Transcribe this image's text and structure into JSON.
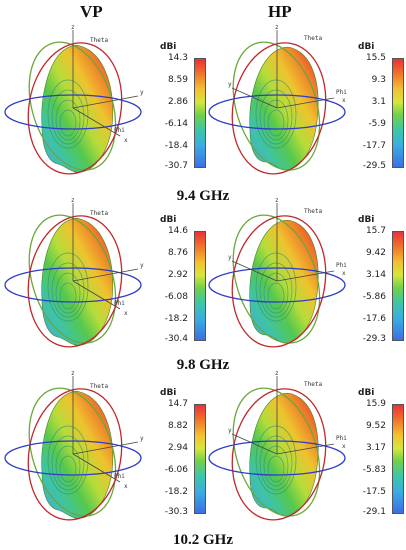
{
  "headers": {
    "left": "VP",
    "right": "HP"
  },
  "frequencies": [
    "9.4 GHz",
    "9.8 GHz",
    "10.2 GHz"
  ],
  "axis_labels": {
    "z": "z",
    "y": "y",
    "x": "x",
    "theta": "Theta",
    "phi": "Phi"
  },
  "colorbar_unit": "dBi",
  "colors": {
    "ring_theta_red": "#c0282a",
    "ring_theta_green": "#6aa83a",
    "ring_phi_blue": "#2e3cc8"
  },
  "panels": [
    {
      "id": "vp-9.4",
      "ticks": [
        "14.3",
        "8.59",
        "2.86",
        "-6.14",
        "-18.4",
        "-30.7"
      ]
    },
    {
      "id": "hp-9.4",
      "ticks": [
        "15.5",
        "9.3",
        "3.1",
        "-5.9",
        "-17.7",
        "-29.5"
      ]
    },
    {
      "id": "vp-9.8",
      "ticks": [
        "14.6",
        "8.76",
        "2.92",
        "-6.08",
        "-18.2",
        "-30.4"
      ]
    },
    {
      "id": "hp-9.8",
      "ticks": [
        "15.7",
        "9.42",
        "3.14",
        "-5.86",
        "-17.6",
        "-29.3"
      ]
    },
    {
      "id": "vp-10.2",
      "ticks": [
        "14.7",
        "8.82",
        "2.94",
        "-6.06",
        "-18.2",
        "-30.3"
      ]
    },
    {
      "id": "hp-10.2",
      "ticks": [
        "15.9",
        "9.52",
        "3.17",
        "-5.83",
        "-17.5",
        "-29.1"
      ]
    }
  ]
}
